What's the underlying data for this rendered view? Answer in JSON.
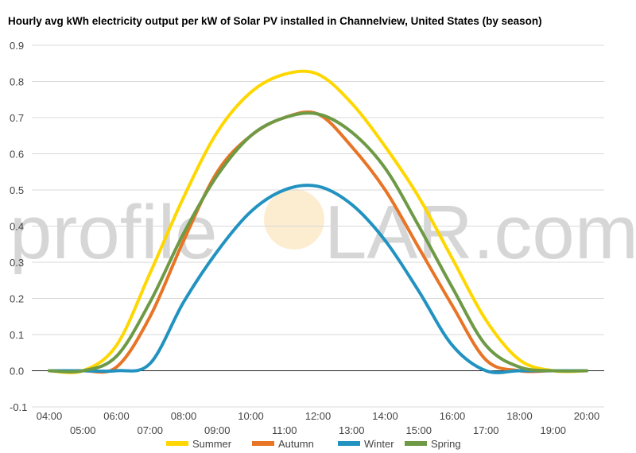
{
  "chart_data": {
    "type": "line",
    "title": "Hourly avg kWh electricity output per kW of Solar PV installed in Channelview, United States (by season)",
    "xlabel": "",
    "ylabel": "",
    "x_ticks": [
      "04:00",
      "05:00",
      "06:00",
      "07:00",
      "08:00",
      "09:00",
      "10:00",
      "11:00",
      "12:00",
      "13:00",
      "14:00",
      "15:00",
      "16:00",
      "17:00",
      "18:00",
      "19:00",
      "20:00"
    ],
    "y_ticks": [
      "-0.1",
      "0.0",
      "0.1",
      "0.2",
      "0.3",
      "0.4",
      "0.5",
      "0.6",
      "0.7",
      "0.8",
      "0.9"
    ],
    "xlim": [
      4,
      20
    ],
    "ylim": [
      -0.1,
      0.9
    ],
    "grid": true,
    "legend_position": "bottom",
    "watermark_left": "profile",
    "watermark_right": "LAR.com",
    "series": [
      {
        "name": "Summer",
        "color": "#FFD700",
        "x": [
          4,
          5,
          6,
          7,
          8,
          9,
          10,
          11,
          12,
          13,
          14,
          15,
          16,
          17,
          18,
          19,
          20
        ],
        "values": [
          0.0,
          0.0,
          0.07,
          0.27,
          0.48,
          0.66,
          0.77,
          0.82,
          0.82,
          0.74,
          0.62,
          0.48,
          0.31,
          0.14,
          0.03,
          0.0,
          0.0
        ]
      },
      {
        "name": "Autumn",
        "color": "#E87425",
        "x": [
          4,
          5,
          6,
          7,
          8,
          9,
          10,
          11,
          12,
          13,
          14,
          15,
          16,
          17,
          18,
          19,
          20
        ],
        "values": [
          0.0,
          0.0,
          0.01,
          0.15,
          0.36,
          0.55,
          0.65,
          0.7,
          0.71,
          0.62,
          0.5,
          0.34,
          0.18,
          0.03,
          0.0,
          0.0,
          0.0
        ]
      },
      {
        "name": "Winter",
        "color": "#2292C0",
        "x": [
          4,
          5,
          6,
          7,
          8,
          9,
          10,
          11,
          12,
          13,
          14,
          15,
          16,
          17,
          18,
          19,
          20
        ],
        "values": [
          0.0,
          0.0,
          0.0,
          0.02,
          0.19,
          0.33,
          0.44,
          0.5,
          0.51,
          0.46,
          0.36,
          0.22,
          0.07,
          0.0,
          0.0,
          0.0,
          0.0
        ]
      },
      {
        "name": "Spring",
        "color": "#6E9A46",
        "x": [
          4,
          5,
          6,
          7,
          8,
          9,
          10,
          11,
          12,
          13,
          14,
          15,
          16,
          17,
          18,
          19,
          20
        ],
        "values": [
          0.0,
          0.0,
          0.04,
          0.19,
          0.38,
          0.54,
          0.65,
          0.7,
          0.71,
          0.66,
          0.56,
          0.4,
          0.23,
          0.07,
          0.01,
          0.0,
          0.0
        ]
      }
    ]
  }
}
